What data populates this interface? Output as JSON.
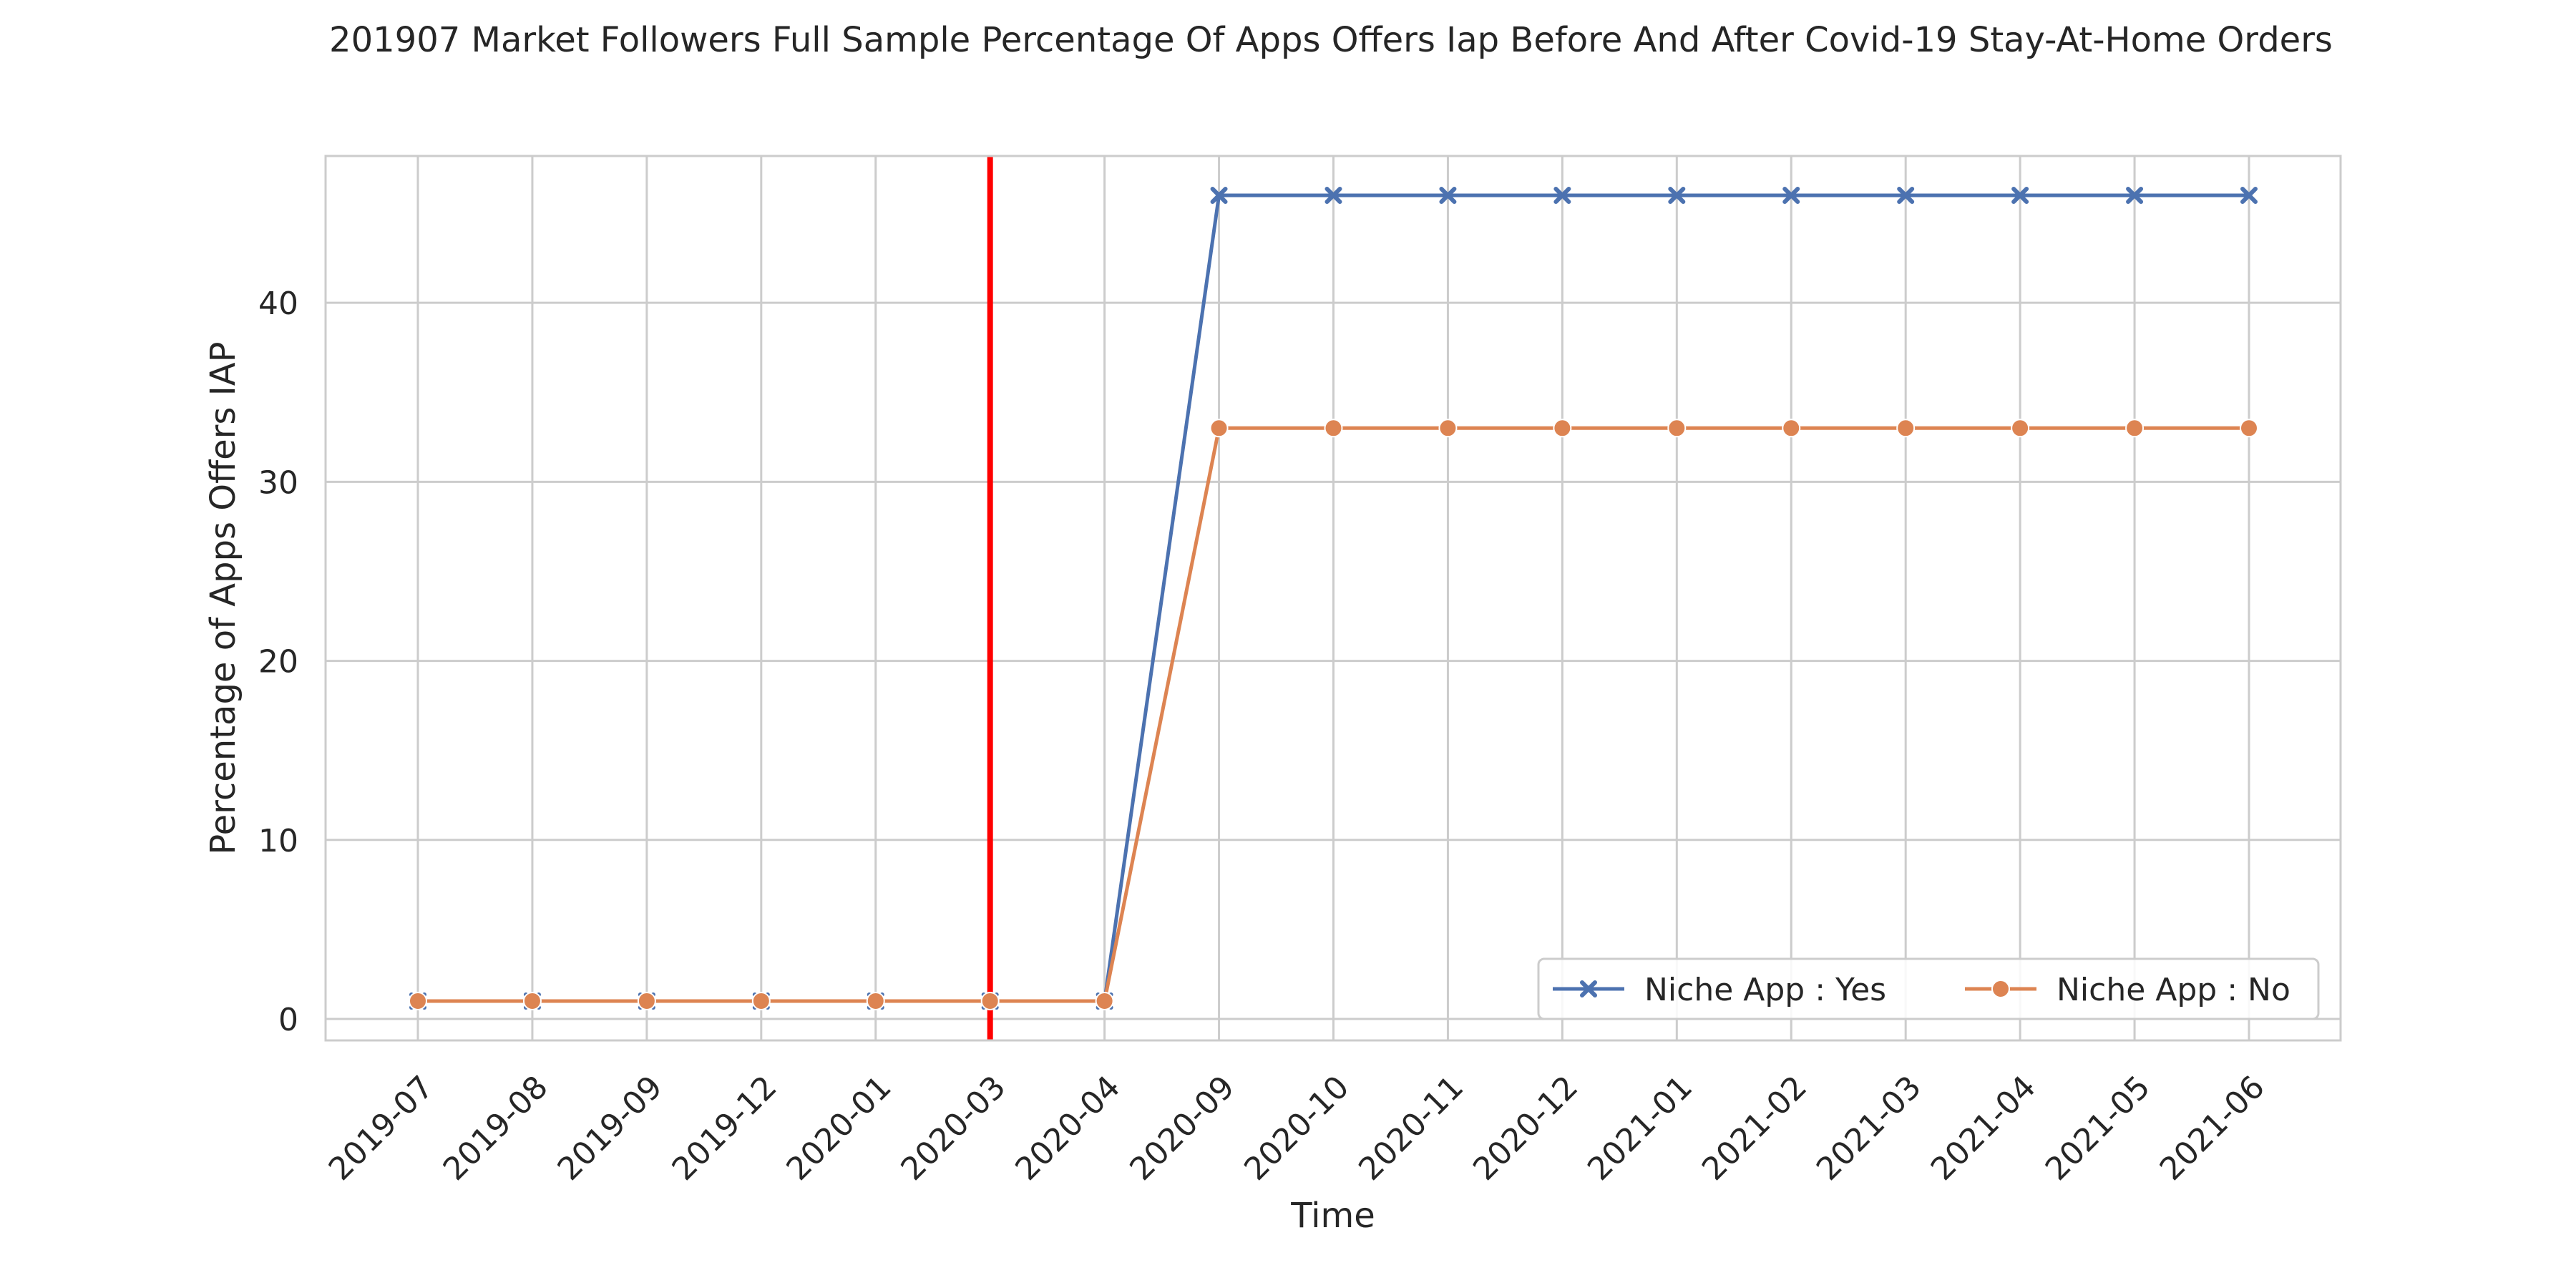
{
  "chart_data": {
    "type": "line",
    "title": "201907 Market Followers Full Sample Percentage Of Apps Offers Iap Before And After Covid-19 Stay-At-Home Orders",
    "xlabel": "Time",
    "ylabel": "Percentage of Apps Offers IAP",
    "categories": [
      "2019-07",
      "2019-08",
      "2019-09",
      "2019-12",
      "2020-01",
      "2020-03",
      "2020-04",
      "2020-09",
      "2020-10",
      "2020-11",
      "2020-12",
      "2021-01",
      "2021-02",
      "2021-03",
      "2021-04",
      "2021-05",
      "2021-06"
    ],
    "ylim": [
      -1.2,
      48.2
    ],
    "yticks": [
      0,
      10,
      20,
      30,
      40
    ],
    "grid": true,
    "legend_position": "lower-right",
    "reference_line": {
      "x": "2020-03",
      "color": "#ff0000"
    },
    "series": [
      {
        "name": "Niche App : Yes",
        "color": "#4c72b0",
        "marker": "x",
        "values": [
          1,
          1,
          1,
          1,
          1,
          1,
          1,
          46,
          46,
          46,
          46,
          46,
          46,
          46,
          46,
          46,
          46
        ]
      },
      {
        "name": "Niche App : No",
        "color": "#dd8452",
        "marker": "circle",
        "values": [
          1,
          1,
          1,
          1,
          1,
          1,
          1,
          33,
          33,
          33,
          33,
          33,
          33,
          33,
          33,
          33,
          33
        ]
      }
    ]
  }
}
